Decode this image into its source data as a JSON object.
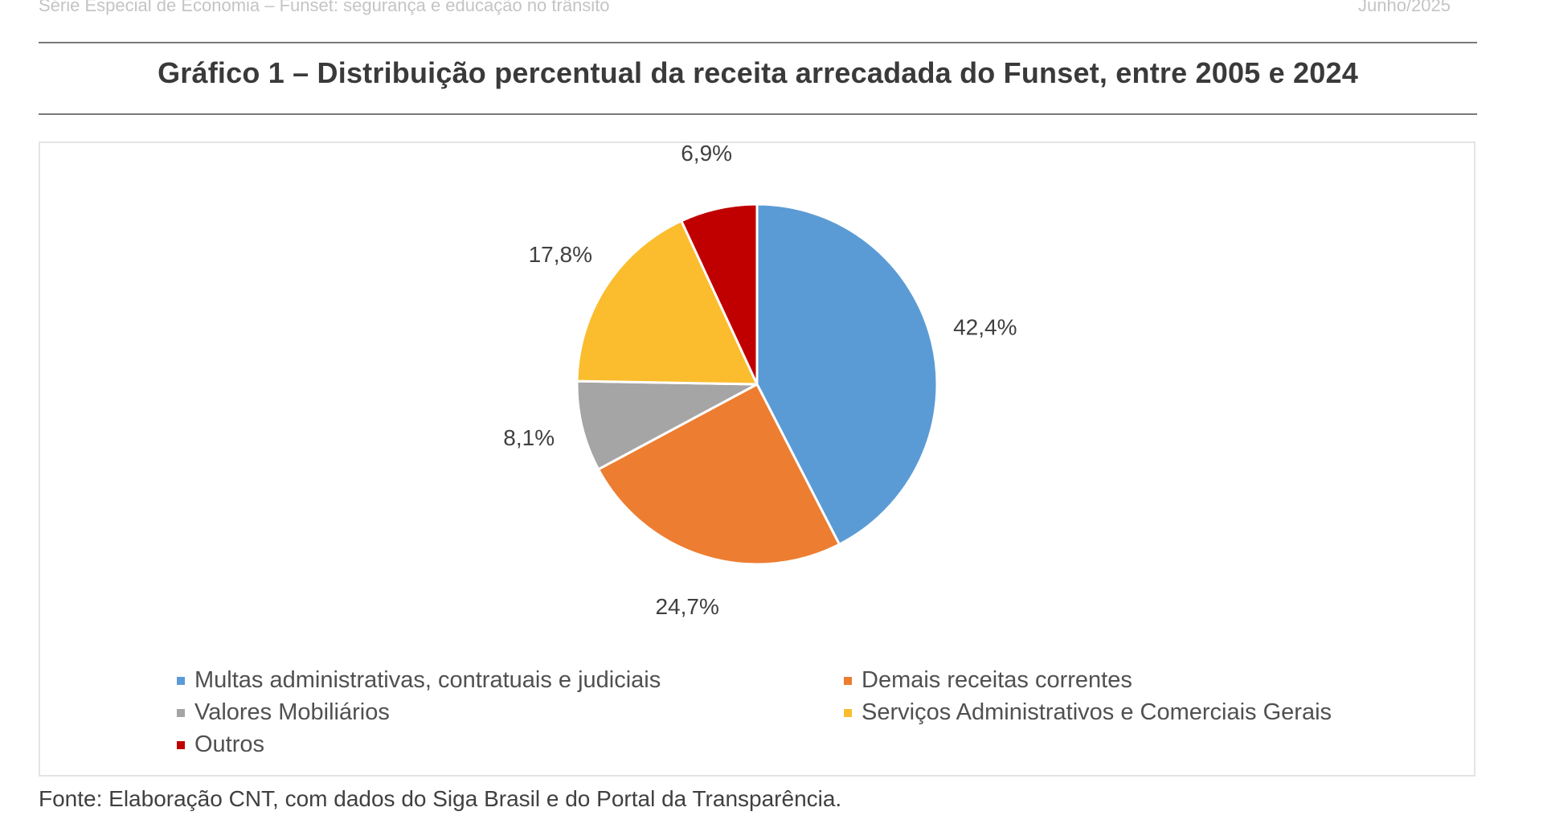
{
  "page_header": {
    "left": "Série Especial de Economia – Funset: segurança e educação no trânsito",
    "right": "Junho/2025"
  },
  "chart_data": {
    "type": "pie",
    "title": "Gráfico 1 – Distribuição percentual da receita arrecadada do Funset, entre 2005 e 2024",
    "series": [
      {
        "name": "Multas administrativas, contratuais e judiciais",
        "value": 42.4,
        "label": "42,4%",
        "color": "#5b9bd5"
      },
      {
        "name": "Demais receitas correntes",
        "value": 24.7,
        "label": "24,7%",
        "color": "#ed7d31"
      },
      {
        "name": "Valores Mobiliários",
        "value": 8.1,
        "label": "8,1%",
        "color": "#a5a5a5"
      },
      {
        "name": "Serviços Administrativos e Comerciais Gerais",
        "value": 17.8,
        "label": "17,8%",
        "color": "#fbbd2e"
      },
      {
        "name": "Outros",
        "value": 6.9,
        "label": "6,9%",
        "color": "#c00000"
      }
    ],
    "legend_position": "bottom",
    "source": "Fonte: Elaboração CNT, com dados do Siga Brasil e do Portal da Transparência."
  }
}
